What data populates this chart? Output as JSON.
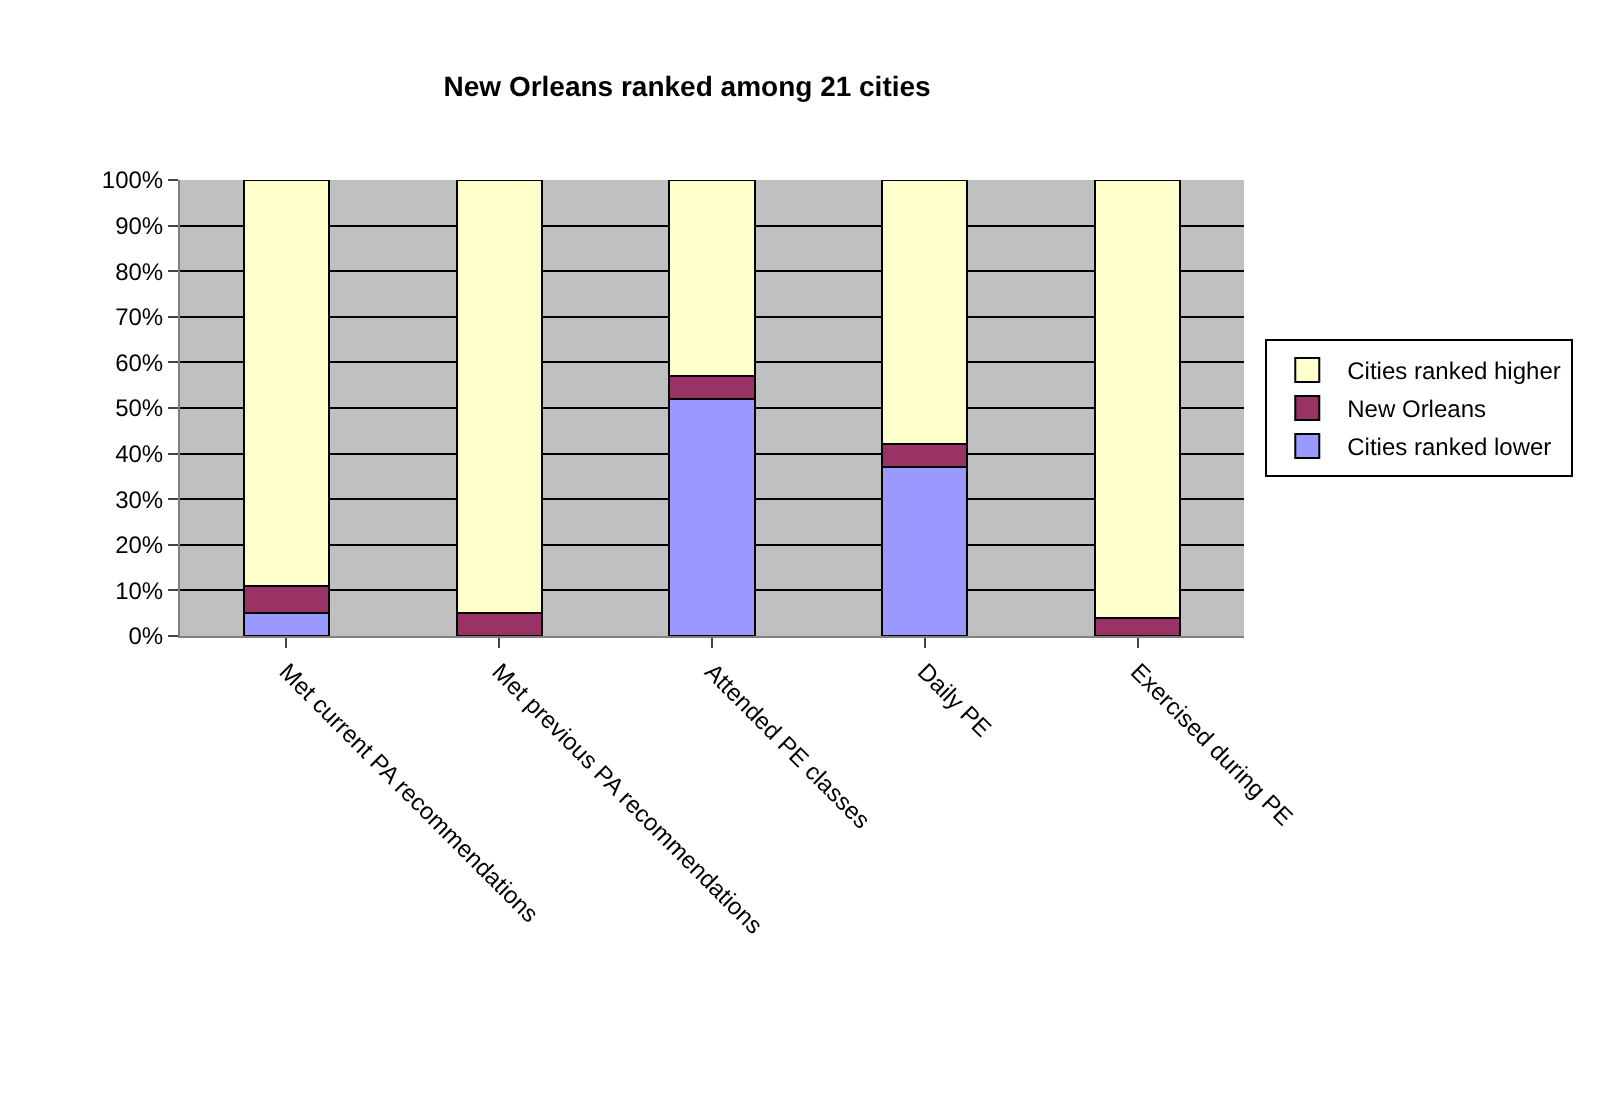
{
  "chart_data": {
    "type": "bar",
    "title": "New Orleans ranked among 21 cities",
    "stacked": true,
    "categories": [
      "Met current PA recommendations",
      "Met previous PA recommendations",
      "Attended PE classes",
      "Daily PE",
      "Exercised during PE"
    ],
    "series": [
      {
        "name": "Cities ranked lower",
        "color": "#9999ff",
        "values": [
          5,
          0,
          52,
          37,
          0
        ]
      },
      {
        "name": "New Orleans",
        "color": "#993366",
        "values": [
          6,
          5,
          5,
          5,
          4
        ]
      },
      {
        "name": "Cities ranked higher",
        "color": "#ffffcc",
        "values": [
          89,
          95,
          43,
          58,
          96
        ]
      }
    ],
    "ylim": [
      0,
      100
    ],
    "yticks": [
      {
        "value": 0,
        "label": "0%"
      },
      {
        "value": 10,
        "label": "10%"
      },
      {
        "value": 20,
        "label": "20%"
      },
      {
        "value": 30,
        "label": "30%"
      },
      {
        "value": 40,
        "label": "40%"
      },
      {
        "value": 50,
        "label": "50%"
      },
      {
        "value": 60,
        "label": "60%"
      },
      {
        "value": 70,
        "label": "70%"
      },
      {
        "value": 80,
        "label": "80%"
      },
      {
        "value": 90,
        "label": "90%"
      },
      {
        "value": 100,
        "label": "100%"
      }
    ],
    "grid": "y",
    "legend": "right"
  }
}
